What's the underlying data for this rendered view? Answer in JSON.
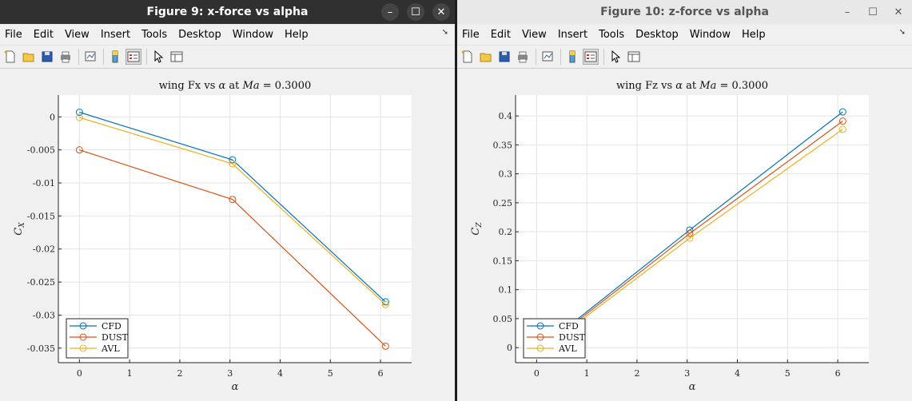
{
  "colors": {
    "cfd": "#0072BD",
    "dust": "#D95319",
    "avl": "#EDB120"
  },
  "figures": [
    {
      "title": "Figure 9: x-force vs alpha",
      "menu": [
        "File",
        "Edit",
        "View",
        "Insert",
        "Tools",
        "Desktop",
        "Window",
        "Help"
      ],
      "chart_data": {
        "type": "line",
        "title": "wing Fx vs α at Ma = 0.3000",
        "title_parts": {
          "prefix": "wing Fx vs ",
          "alpha": "α",
          "mid": " at ",
          "ma": "Ma",
          "suffix": " = 0.3000"
        },
        "xlabel": "α",
        "ylabel": "C",
        "ylabel_sub": "X",
        "xlim": [
          -0.42,
          6.62
        ],
        "ylim": [
          -0.0372,
          0.0033
        ],
        "xticks": [
          0,
          1,
          2,
          3,
          4,
          5,
          6
        ],
        "xtick_labels": [
          "0",
          "1",
          "2",
          "3",
          "4",
          "5",
          "6"
        ],
        "yticks": [
          0,
          -0.005,
          -0.01,
          -0.015,
          -0.02,
          -0.025,
          -0.03,
          -0.035
        ],
        "ytick_labels": [
          "0",
          "-0.005",
          "-0.01",
          "-0.015",
          "-0.02",
          "-0.025",
          "-0.03",
          "-0.035"
        ],
        "grid": true,
        "legend_position": "bottom-left",
        "x": [
          0,
          3.05,
          6.1
        ],
        "series": [
          {
            "name": "CFD",
            "values": [
              0.0007,
              -0.0065,
              -0.028
            ]
          },
          {
            "name": "DUST",
            "values": [
              -0.005,
              -0.0125,
              -0.0347
            ]
          },
          {
            "name": "AVL",
            "values": [
              -0.0001,
              -0.0071,
              -0.0284
            ]
          }
        ]
      }
    },
    {
      "title": "Figure 10: z-force vs alpha",
      "menu": [
        "File",
        "Edit",
        "View",
        "Insert",
        "Tools",
        "Desktop",
        "Window",
        "Help"
      ],
      "chart_data": {
        "type": "line",
        "title": "wing Fz vs α at Ma = 0.3000",
        "title_parts": {
          "prefix": "wing Fz vs ",
          "alpha": "α",
          "mid": " at ",
          "ma": "Ma",
          "suffix": " = 0.3000"
        },
        "xlabel": "α",
        "ylabel": "C",
        "ylabel_sub": "Z",
        "xlim": [
          -0.42,
          6.62
        ],
        "ylim": [
          -0.026,
          0.436
        ],
        "xticks": [
          0,
          1,
          2,
          3,
          4,
          5,
          6
        ],
        "xtick_labels": [
          "0",
          "1",
          "2",
          "3",
          "4",
          "5",
          "6"
        ],
        "yticks": [
          0,
          0.05,
          0.1,
          0.15,
          0.2,
          0.25,
          0.3,
          0.35,
          0.4
        ],
        "ytick_labels": [
          "0",
          "0.05",
          "0.1",
          "0.15",
          "0.2",
          "0.25",
          "0.3",
          "0.35",
          "0.4"
        ],
        "grid": true,
        "legend_position": "bottom-left",
        "x": [
          0,
          3.05,
          6.1
        ],
        "series": [
          {
            "name": "CFD",
            "values": [
              -0.007,
              0.203,
              0.407
            ]
          },
          {
            "name": "DUST",
            "values": [
              -0.009,
              0.197,
              0.391
            ]
          },
          {
            "name": "AVL",
            "values": [
              -0.011,
              0.189,
              0.377
            ]
          }
        ]
      }
    }
  ]
}
